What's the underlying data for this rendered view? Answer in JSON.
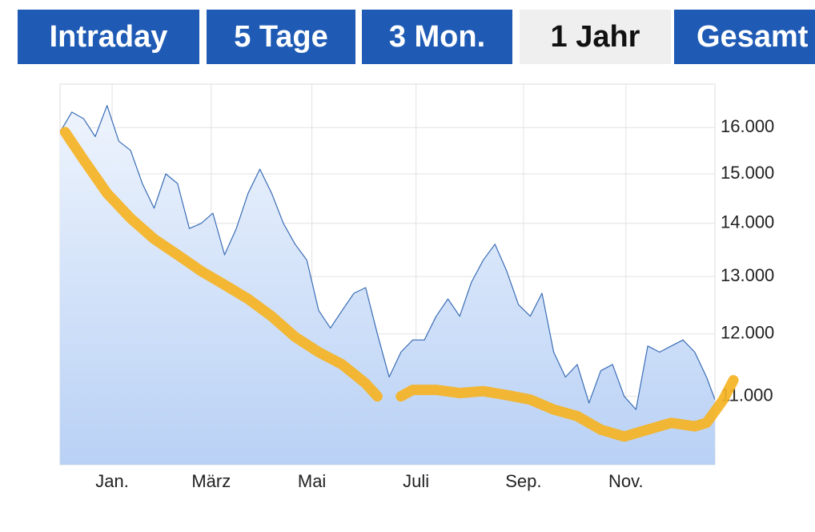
{
  "tabs": [
    {
      "label": "Intraday",
      "active": false
    },
    {
      "label": "5 Tage",
      "active": false
    },
    {
      "label": "3 Mon.",
      "active": false
    },
    {
      "label": "1 Jahr",
      "active": true
    },
    {
      "label": "Gesamt",
      "active": false
    }
  ],
  "chart_data": {
    "type": "line",
    "log_y": true,
    "grid": true,
    "xlim": [
      0,
      390
    ],
    "ylim": [
      10000,
      17000
    ],
    "xticks": [
      {
        "value": 31,
        "label": "Jan."
      },
      {
        "value": 90,
        "label": "März"
      },
      {
        "value": 150,
        "label": "Mai"
      },
      {
        "value": 212,
        "label": "Juli"
      },
      {
        "value": 276,
        "label": "Sep."
      },
      {
        "value": 337,
        "label": "Nov."
      }
    ],
    "yticks": [
      {
        "value": 11000,
        "label": "11.000"
      },
      {
        "value": 12000,
        "label": "12.000"
      },
      {
        "value": 13000,
        "label": "13.000"
      },
      {
        "value": 14000,
        "label": "14.000"
      },
      {
        "value": 15000,
        "label": "15.000"
      },
      {
        "value": 16000,
        "label": "16.000"
      }
    ],
    "series": [
      {
        "color": "#3a6db5",
        "fill": true,
        "width": 1.2,
        "x": [
          0,
          7,
          14,
          21,
          28,
          35,
          42,
          49,
          56,
          63,
          70,
          77,
          84,
          91,
          98,
          105,
          112,
          119,
          126,
          133,
          140,
          147,
          154,
          161,
          168,
          175,
          182,
          189,
          196,
          203,
          210,
          217,
          224,
          231,
          238,
          245,
          252,
          259,
          266,
          273,
          280,
          287,
          294,
          301,
          308,
          315,
          322,
          329,
          336,
          343,
          350,
          357,
          364,
          371,
          378,
          385,
          390
        ],
        "values": [
          15900,
          16350,
          16200,
          15800,
          16500,
          15700,
          15500,
          14800,
          14300,
          15000,
          14800,
          13900,
          14000,
          14200,
          13400,
          13900,
          14600,
          15100,
          14600,
          14000,
          13600,
          13300,
          12400,
          12100,
          12400,
          12700,
          12800,
          12000,
          11300,
          11700,
          11900,
          11900,
          12300,
          12600,
          12300,
          12900,
          13300,
          13600,
          13100,
          12500,
          12300,
          12700,
          11700,
          11300,
          11500,
          10900,
          11400,
          11500,
          11000,
          10800,
          11800,
          11700,
          11800,
          11900,
          11700,
          11300,
          10950
        ]
      },
      {
        "color": "#f5b323",
        "fill": false,
        "width": 13,
        "x": [
          3,
          14,
          28,
          42,
          56,
          70,
          84,
          98,
          112,
          126,
          140,
          154,
          168,
          182,
          189,
          196,
          203,
          210,
          224,
          238,
          252,
          266,
          280,
          294,
          308,
          322,
          336,
          350,
          364,
          378,
          385,
          395,
          401
        ],
        "values": [
          15900,
          15300,
          14600,
          14100,
          13700,
          13400,
          13100,
          12850,
          12600,
          12300,
          11950,
          11700,
          11500,
          11200,
          11000,
          null,
          11000,
          11100,
          11100,
          11050,
          11080,
          11020,
          10950,
          10800,
          10700,
          10500,
          10400,
          10500,
          10600,
          10550,
          10600,
          10950,
          11250
        ]
      }
    ]
  }
}
